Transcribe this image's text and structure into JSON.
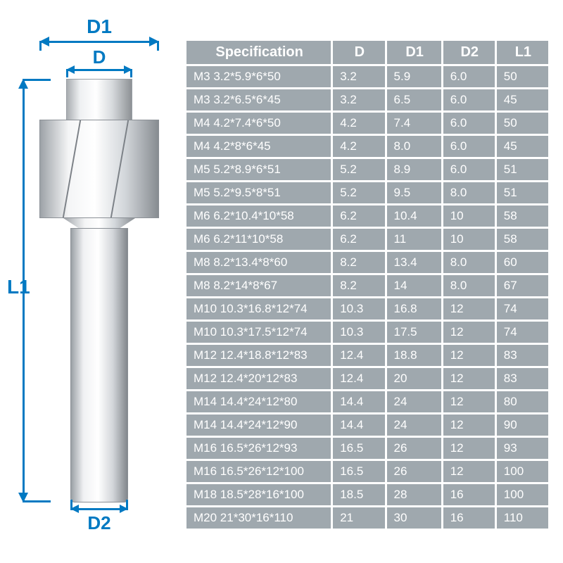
{
  "colors": {
    "brand": "#0079c2",
    "cell_bg": "#9fa8ae",
    "cell_text": "#ffffff"
  },
  "labels": {
    "D": "D",
    "D1": "D1",
    "D2": "D2",
    "L1": "L1"
  },
  "table": {
    "columns": [
      "Specification",
      "D",
      "D1",
      "D2",
      "L1"
    ],
    "col_classes": [
      "col-spec",
      "col-d",
      "col-d1",
      "col-d2",
      "col-l1"
    ],
    "header_fontsize": 20,
    "cell_fontsize": 17,
    "rows": [
      [
        "M3 3.2*5.9*6*50",
        "3.2",
        "5.9",
        "6.0",
        "50"
      ],
      [
        "M3 3.2*6.5*6*45",
        "3.2",
        "6.5",
        "6.0",
        "45"
      ],
      [
        "M4 4.2*7.4*6*50",
        "4.2",
        "7.4",
        "6.0",
        "50"
      ],
      [
        "M4 4.2*8*6*45",
        "4.2",
        "8.0",
        "6.0",
        "45"
      ],
      [
        "M5 5.2*8.9*6*51",
        "5.2",
        "8.9",
        "6.0",
        "51"
      ],
      [
        "M5 5.2*9.5*8*51",
        "5.2",
        "9.5",
        "8.0",
        "51"
      ],
      [
        "M6 6.2*10.4*10*58",
        "6.2",
        "10.4",
        "10",
        "58"
      ],
      [
        "M6 6.2*11*10*58",
        "6.2",
        "11",
        "10",
        "58"
      ],
      [
        "M8 8.2*13.4*8*60",
        "8.2",
        "13.4",
        "8.0",
        "60"
      ],
      [
        "M8 8.2*14*8*67",
        "8.2",
        "14",
        "8.0",
        "67"
      ],
      [
        "M10 10.3*16.8*12*74",
        "10.3",
        "16.8",
        "12",
        "74"
      ],
      [
        "M10 10.3*17.5*12*74",
        "10.3",
        "17.5",
        "12",
        "74"
      ],
      [
        "M12 12.4*18.8*12*83",
        "12.4",
        "18.8",
        "12",
        "83"
      ],
      [
        "M12 12.4*20*12*83",
        "12.4",
        "20",
        "12",
        "83"
      ],
      [
        "M14 14.4*24*12*80",
        "14.4",
        "24",
        "12",
        "80"
      ],
      [
        "M14 14.4*24*12*90",
        "14.4",
        "24",
        "12",
        "90"
      ],
      [
        "M16 16.5*26*12*93",
        "16.5",
        "26",
        "12",
        "93"
      ],
      [
        "M16 16.5*26*12*100",
        "16.5",
        "26",
        "12",
        "100"
      ],
      [
        "M18 18.5*28*16*100",
        "18.5",
        "28",
        "16",
        "100"
      ],
      [
        "M20 21*30*16*110",
        "21",
        "30",
        "16",
        "110"
      ]
    ]
  }
}
